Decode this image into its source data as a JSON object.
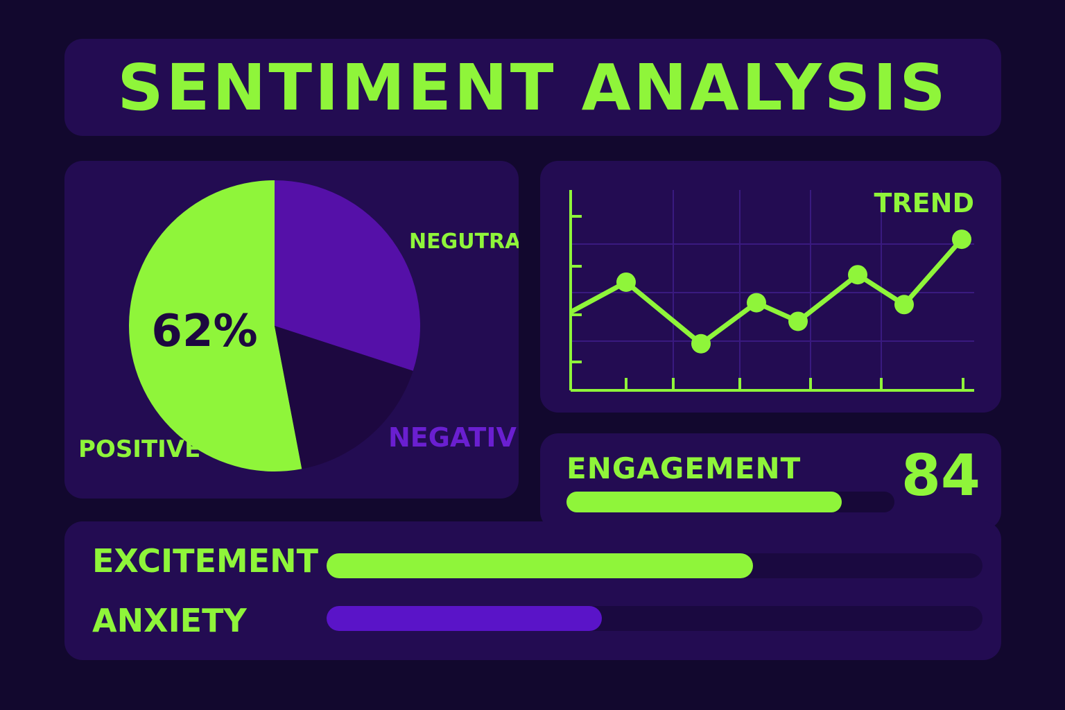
{
  "title": "SENTIMENT ANALYSIS",
  "colors": {
    "background": "#12082e",
    "panel": "#230c52",
    "accent_green": "#8ff53a",
    "accent_purple": "#5510a8",
    "dark_purple": "#1d0840"
  },
  "chart_data": [
    {
      "type": "pie",
      "center_label": "62%",
      "labels": [
        "POSITIVE",
        "NEGUTRA.",
        "NEGATIVE"
      ],
      "values": [
        53,
        30,
        17
      ],
      "colors": [
        "#8ff53a",
        "#5510a8",
        "#1d0840"
      ],
      "label_colors": [
        "#8ff53a",
        "#8ff53a",
        "#6a1fd0"
      ]
    },
    {
      "type": "line",
      "title": "TREND",
      "x": [
        0,
        1,
        2,
        3,
        4,
        5,
        6,
        7
      ],
      "y": [
        42,
        58,
        25,
        47,
        37,
        62,
        46,
        81
      ],
      "ylim": [
        0,
        100
      ],
      "grid": true,
      "markers": true,
      "color": "#8ff53a"
    },
    {
      "type": "bar",
      "orientation": "horizontal",
      "categories": [
        "ENGAGEMENT"
      ],
      "values": [
        84
      ],
      "xlim": [
        0,
        100
      ],
      "value_label": "84",
      "color": "#8ff53a"
    },
    {
      "type": "bar",
      "orientation": "horizontal",
      "categories": [
        "EXCITEMENT",
        "ANXIETY"
      ],
      "values": [
        65,
        42
      ],
      "xlim": [
        0,
        100
      ],
      "colors": [
        "#8ff53a",
        "#5a14c8"
      ]
    }
  ]
}
